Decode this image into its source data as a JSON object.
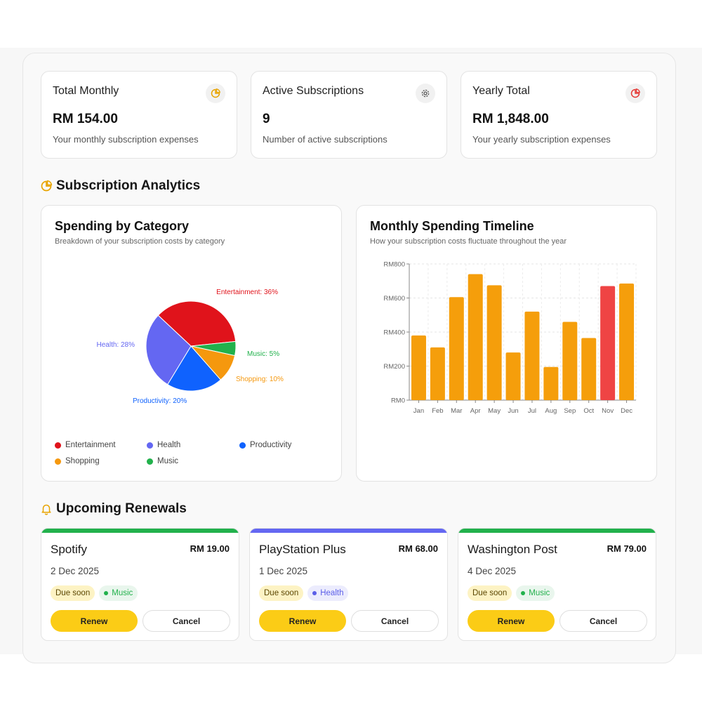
{
  "stats": [
    {
      "title": "Total Monthly",
      "value": "RM 154.00",
      "desc": "Your monthly subscription expenses",
      "icon": "pie-chart-icon",
      "icon_color": "#e8a400"
    },
    {
      "title": "Active Subscriptions",
      "value": "9",
      "desc": "Number of active subscriptions",
      "icon": "gear-icon",
      "icon_color": "#555555"
    },
    {
      "title": "Yearly Total",
      "value": "RM 1,848.00",
      "desc": "Your yearly subscription expenses",
      "icon": "pie-chart-icon",
      "icon_color": "#e53935"
    }
  ],
  "analytics": {
    "heading": "Subscription Analytics",
    "icon": "pie-chart-icon"
  },
  "pie": {
    "title": "Spending by Category",
    "subtitle": "Breakdown of your subscription costs by category",
    "slice_labels": [
      "Entertainment: 36%",
      "Music: 5%",
      "Shopping: 10%",
      "Productivity: 20%",
      "Health: 28%"
    ],
    "legend": [
      "Entertainment",
      "Health",
      "Productivity",
      "Shopping",
      "Music"
    ]
  },
  "timeline": {
    "title": "Monthly Spending Timeline",
    "subtitle": "How your subscription costs fluctuate throughout the year"
  },
  "chart_data": [
    {
      "type": "pie",
      "title": "Spending by Category",
      "slices": [
        {
          "name": "Entertainment",
          "value": 36,
          "color": "#e0131b"
        },
        {
          "name": "Music",
          "value": 5,
          "color": "#22b14c"
        },
        {
          "name": "Shopping",
          "value": 10,
          "color": "#f5980e"
        },
        {
          "name": "Productivity",
          "value": 20,
          "color": "#0f62fe"
        },
        {
          "name": "Health",
          "value": 28,
          "color": "#6467f2"
        }
      ]
    },
    {
      "type": "bar",
      "title": "Monthly Spending Timeline",
      "categories": [
        "Jan",
        "Feb",
        "Mar",
        "Apr",
        "May",
        "Jun",
        "Jul",
        "Aug",
        "Sep",
        "Oct",
        "Nov",
        "Dec"
      ],
      "values": [
        380,
        310,
        605,
        740,
        675,
        280,
        520,
        195,
        460,
        365,
        670,
        685
      ],
      "highlight_color": "#ef4444",
      "bar_color": "#f59e0b",
      "highlight_index": 10,
      "ylim": [
        0,
        800
      ],
      "yticks": [
        "RM0",
        "RM200",
        "RM400",
        "RM600",
        "RM800"
      ],
      "grid": true
    }
  ],
  "renewals": {
    "heading": "Upcoming Renewals",
    "icon": "bell-icon",
    "items": [
      {
        "name": "Spotify",
        "price": "RM 19.00",
        "date": "2 Dec 2025",
        "due": "Due soon",
        "category": "Music",
        "bar_color": "#22b14c",
        "cat_color": "#22b14c",
        "cat_bg": "#e9f6ed",
        "renew": "Renew",
        "cancel": "Cancel"
      },
      {
        "name": "PlayStation Plus",
        "price": "RM 68.00",
        "date": "1 Dec 2025",
        "due": "Due soon",
        "category": "Health",
        "bar_color": "#6467f2",
        "cat_color": "#5b5ee8",
        "cat_bg": "#ececfd",
        "renew": "Renew",
        "cancel": "Cancel"
      },
      {
        "name": "Washington Post",
        "price": "RM 79.00",
        "date": "4 Dec 2025",
        "due": "Due soon",
        "category": "Music",
        "bar_color": "#22b14c",
        "cat_color": "#22b14c",
        "cat_bg": "#e9f6ed",
        "renew": "Renew",
        "cancel": "Cancel"
      }
    ]
  }
}
